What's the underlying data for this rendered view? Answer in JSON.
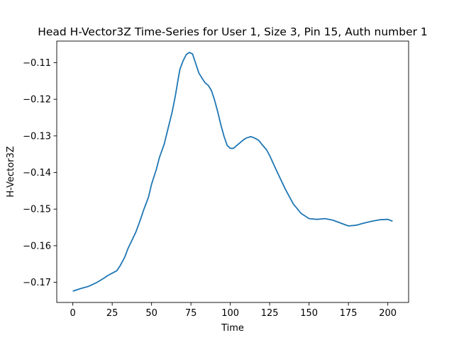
{
  "chart_data": {
    "type": "line",
    "title": "Head H-Vector3Z Time-Series for User 1, Size 3, Pin 15, Auth number 1",
    "xlabel": "Time",
    "ylabel": "H-Vector3Z",
    "xlim": [
      -10.2,
      213.2
    ],
    "ylim": [
      -0.1755,
      -0.1041
    ],
    "xticks": [
      0,
      25,
      50,
      75,
      100,
      125,
      150,
      175,
      200
    ],
    "xtick_labels": [
      "0",
      "25",
      "50",
      "75",
      "100",
      "125",
      "150",
      "175",
      "200"
    ],
    "yticks": [
      -0.17,
      -0.16,
      -0.15,
      -0.14,
      -0.13,
      -0.12,
      -0.11
    ],
    "ytick_labels": [
      "−0.17",
      "−0.16",
      "−0.15",
      "−0.14",
      "−0.13",
      "−0.12",
      "−0.11"
    ],
    "grid": false,
    "line_color": "#1f77b4",
    "series": [
      {
        "x": [
          0,
          5,
          10,
          15,
          20,
          22,
          25,
          28,
          30,
          33,
          35,
          37,
          40,
          43,
          45,
          48,
          50,
          53,
          55,
          58,
          60,
          63,
          65,
          67,
          68,
          70,
          72,
          74,
          76,
          78,
          80,
          82,
          84,
          86,
          88,
          90,
          92,
          94,
          96,
          98,
          100,
          102,
          105,
          108,
          110,
          113,
          115,
          118,
          120,
          123,
          125,
          130,
          135,
          140,
          145,
          150,
          155,
          160,
          165,
          170,
          175,
          180,
          185,
          190,
          195,
          200,
          203
        ],
        "y": [
          -0.1724,
          -0.1717,
          -0.1711,
          -0.1701,
          -0.1688,
          -0.1682,
          -0.1675,
          -0.1668,
          -0.1655,
          -0.1631,
          -0.1608,
          -0.159,
          -0.1563,
          -0.1528,
          -0.1502,
          -0.1468,
          -0.1432,
          -0.1392,
          -0.1359,
          -0.1323,
          -0.1288,
          -0.1236,
          -0.1193,
          -0.1142,
          -0.1118,
          -0.1095,
          -0.1078,
          -0.1072,
          -0.1076,
          -0.1102,
          -0.1128,
          -0.1142,
          -0.1155,
          -0.1162,
          -0.1176,
          -0.1202,
          -0.1234,
          -0.127,
          -0.1301,
          -0.1326,
          -0.1334,
          -0.1334,
          -0.1323,
          -0.1312,
          -0.1306,
          -0.1302,
          -0.1305,
          -0.1312,
          -0.1323,
          -0.1338,
          -0.1354,
          -0.1401,
          -0.1446,
          -0.1486,
          -0.1512,
          -0.1526,
          -0.1528,
          -0.1526,
          -0.153,
          -0.1538,
          -0.1546,
          -0.1544,
          -0.1538,
          -0.1533,
          -0.1529,
          -0.1528,
          -0.1533
        ]
      }
    ]
  }
}
